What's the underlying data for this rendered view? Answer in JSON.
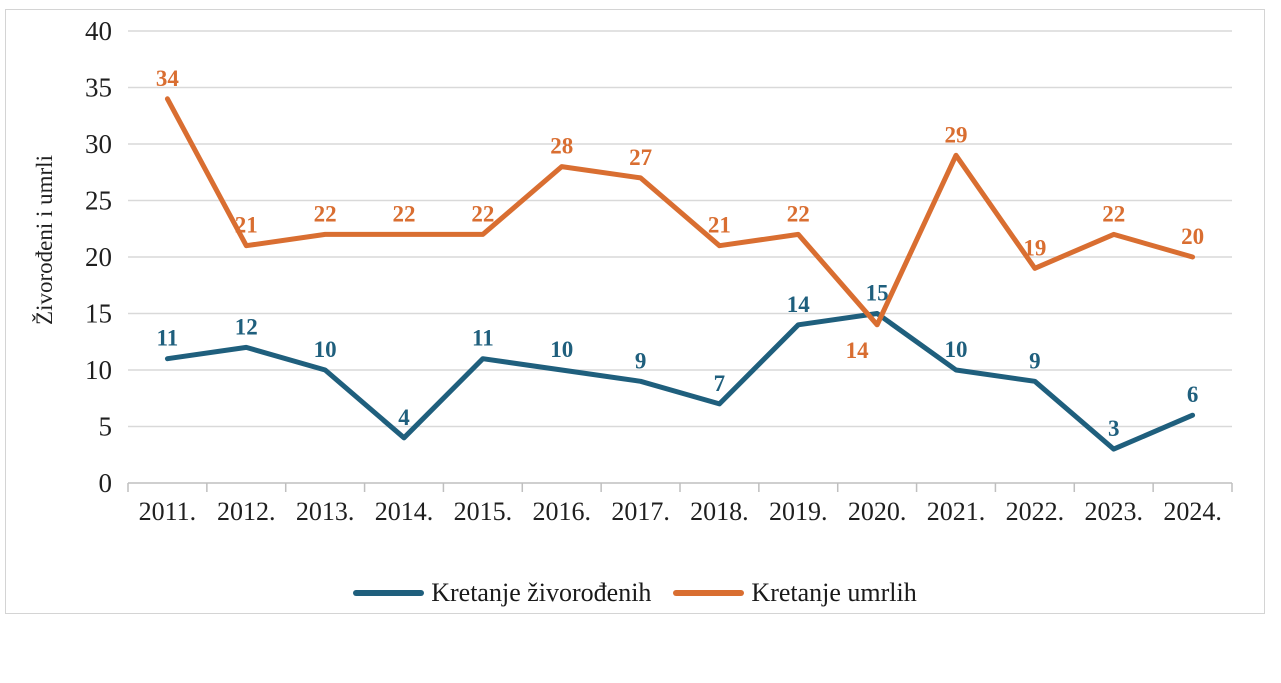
{
  "chart_data": {
    "type": "line",
    "categories": [
      "2011.",
      "2012.",
      "2013.",
      "2014.",
      "2015.",
      "2016.",
      "2017.",
      "2018.",
      "2019.",
      "2020.",
      "2021.",
      "2022.",
      "2023.",
      "2024."
    ],
    "series": [
      {
        "name": "Kretanje živorođenih",
        "color": "#1f5f7d",
        "values": [
          11,
          12,
          10,
          4,
          11,
          10,
          9,
          7,
          14,
          15,
          10,
          9,
          3,
          6
        ]
      },
      {
        "name": "Kretanje umrlih",
        "color": "#d96e31",
        "values": [
          34,
          21,
          22,
          22,
          22,
          28,
          27,
          21,
          22,
          14,
          29,
          19,
          22,
          20
        ]
      }
    ],
    "title": "",
    "xlabel": "",
    "ylabel": "Živorođeni i umrli",
    "yticks": [
      0,
      5,
      10,
      15,
      20,
      25,
      30,
      35,
      40
    ],
    "ylim": [
      0,
      40
    ],
    "grid": true,
    "legend_position": "bottom",
    "data_labels": true,
    "label_overrides": [
      {
        "series": 1,
        "index": 9,
        "position": "below",
        "dx": -20,
        "dy": 33
      }
    ],
    "colors": {
      "gridline": "#d9d9d9",
      "axis": "#bfbfbf",
      "tick_text": "#1f1f1f",
      "axis_title_text": "#1f1f1f",
      "frame_border": "#d4d4d4",
      "background": "#ffffff"
    }
  }
}
